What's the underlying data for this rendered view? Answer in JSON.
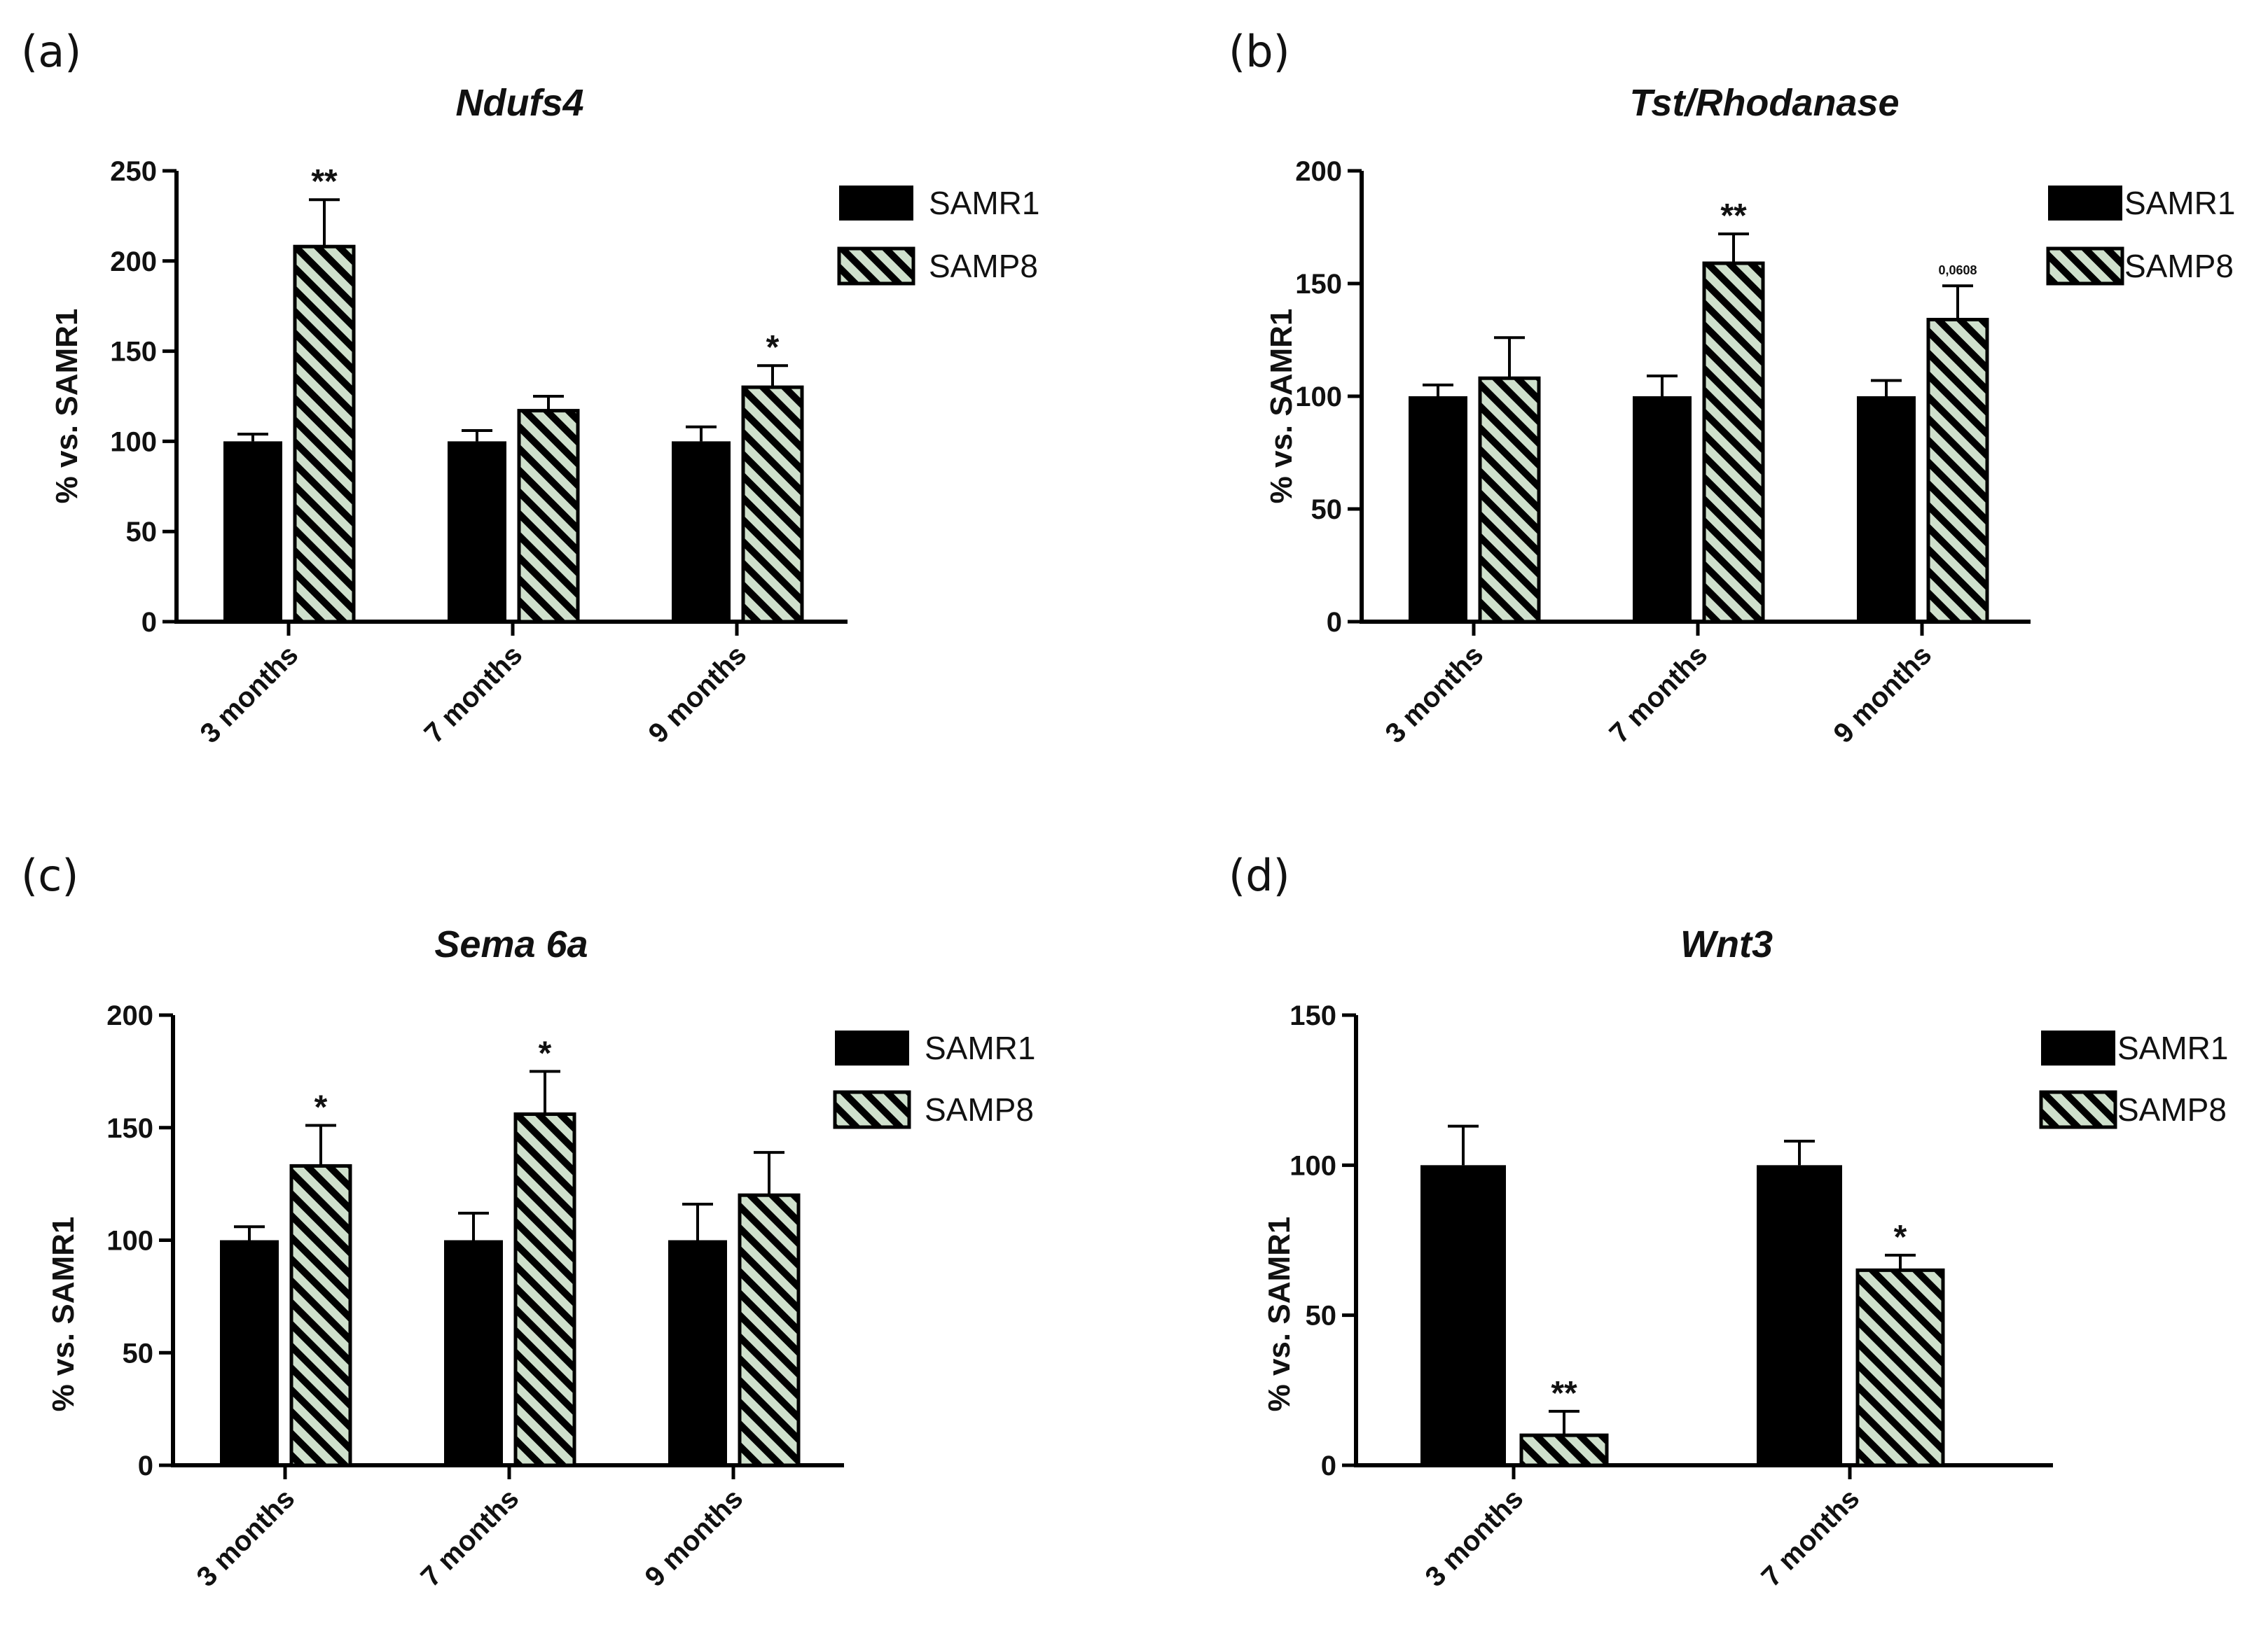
{
  "legend": {
    "series": [
      "SAMR1",
      "SAMP8"
    ]
  },
  "colors": {
    "samr1": "#000000",
    "samp8_fill": "#cfe0cc",
    "samp8_hatch": "#000000",
    "axis": "#000000"
  },
  "chart_data": [
    {
      "panel_label": "(a)",
      "type": "bar",
      "title": "Ndufs4",
      "ylabel": "% vs. SAMR1",
      "xlabel": "",
      "ylim": [
        0,
        250
      ],
      "yticks": [
        0,
        50,
        100,
        150,
        200,
        250
      ],
      "categories": [
        "3 months",
        "7 months",
        "9 months"
      ],
      "series": [
        {
          "name": "SAMR1",
          "values": [
            100,
            100,
            100
          ],
          "errors": [
            4,
            6,
            8
          ],
          "annotations": [
            "",
            "",
            ""
          ]
        },
        {
          "name": "SAMP8",
          "values": [
            208,
            117,
            130
          ],
          "errors": [
            26,
            8,
            12
          ],
          "annotations": [
            "**",
            "",
            "*"
          ]
        }
      ]
    },
    {
      "panel_label": "(b)",
      "type": "bar",
      "title": "Tst/Rhodanase",
      "ylabel": "% vs. SAMR1",
      "xlabel": "",
      "ylim": [
        0,
        200
      ],
      "yticks": [
        0,
        50,
        100,
        150,
        200
      ],
      "categories": [
        "3 months",
        "7 months",
        "9 months"
      ],
      "series": [
        {
          "name": "SAMR1",
          "values": [
            100,
            100,
            100
          ],
          "errors": [
            5,
            9,
            7
          ],
          "annotations": [
            "",
            "",
            ""
          ]
        },
        {
          "name": "SAMP8",
          "values": [
            108,
            159,
            134
          ],
          "errors": [
            18,
            13,
            15
          ],
          "annotations": [
            "",
            "**",
            "0,0608"
          ]
        }
      ]
    },
    {
      "panel_label": "(c)",
      "type": "bar",
      "title": "Sema 6a",
      "ylabel": "% vs. SAMR1",
      "xlabel": "",
      "ylim": [
        0,
        200
      ],
      "yticks": [
        0,
        50,
        100,
        150,
        200
      ],
      "categories": [
        "3 months",
        "7 months",
        "9 months"
      ],
      "series": [
        {
          "name": "SAMR1",
          "values": [
            100,
            100,
            100
          ],
          "errors": [
            6,
            12,
            16
          ],
          "annotations": [
            "",
            "",
            ""
          ]
        },
        {
          "name": "SAMP8",
          "values": [
            133,
            156,
            120
          ],
          "errors": [
            18,
            19,
            19
          ],
          "annotations": [
            "*",
            "*",
            ""
          ]
        }
      ]
    },
    {
      "panel_label": "(d)",
      "type": "bar",
      "title": "Wnt3",
      "ylabel": "% vs. SAMR1",
      "xlabel": "",
      "ylim": [
        0,
        150
      ],
      "yticks": [
        0,
        50,
        100,
        150
      ],
      "categories": [
        "3 months",
        "7 months"
      ],
      "series": [
        {
          "name": "SAMR1",
          "values": [
            100,
            100
          ],
          "errors": [
            13,
            8
          ],
          "annotations": [
            "",
            ""
          ]
        },
        {
          "name": "SAMP8",
          "values": [
            10,
            65
          ],
          "errors": [
            8,
            5
          ],
          "annotations": [
            "**",
            "*"
          ]
        }
      ]
    }
  ]
}
